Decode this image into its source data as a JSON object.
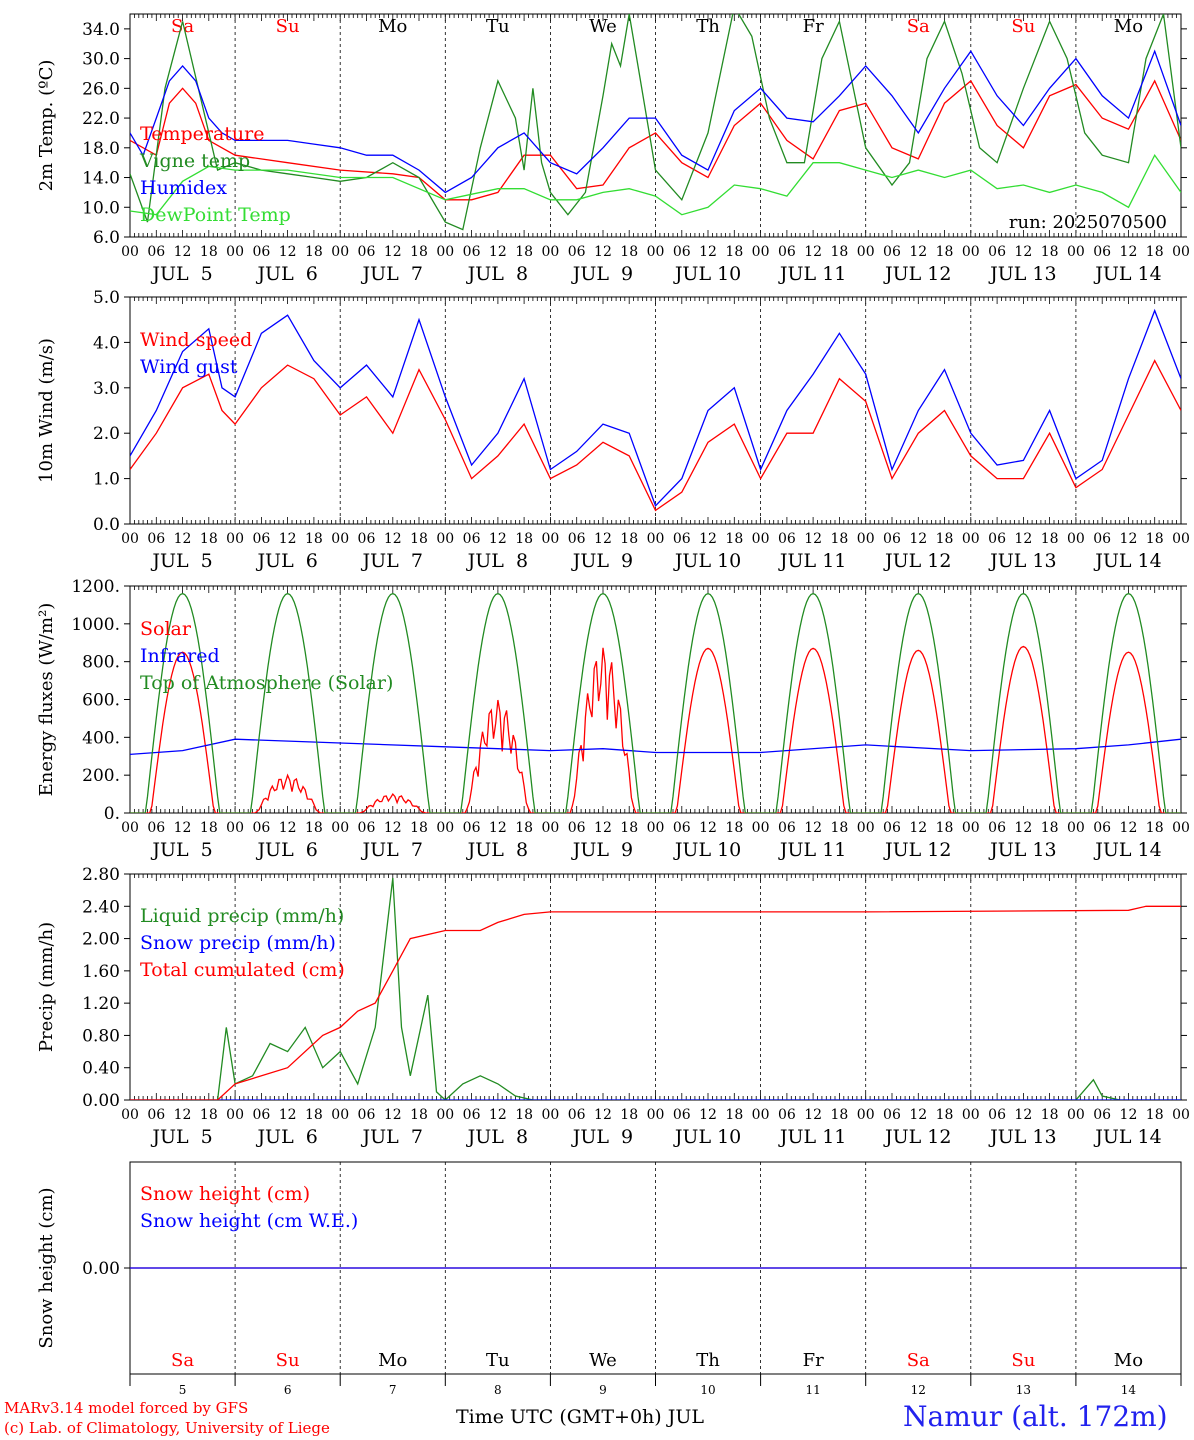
{
  "run_label": "run: 2025070500",
  "credits": [
    "MARv3.14 model forced by GFS",
    "(c) Lab. of Climatology, University of Liege"
  ],
  "xaxis_title": "Time UTC (GMT+0h) JUL",
  "station": "Namur (alt. 172m)",
  "colors": {
    "red": "#ff0000",
    "blue": "#0000ff",
    "green": "#228b22",
    "lightgreen": "#33dd33",
    "weekend": "#ff0000",
    "weekday": "#000000"
  },
  "days": [
    {
      "num": "5",
      "label": "JUL  5",
      "dow": "Sa",
      "weekend": true
    },
    {
      "num": "6",
      "label": "JUL  6",
      "dow": "Su",
      "weekend": true
    },
    {
      "num": "7",
      "label": "JUL  7",
      "dow": "Mo",
      "weekend": false
    },
    {
      "num": "8",
      "label": "JUL  8",
      "dow": "Tu",
      "weekend": false
    },
    {
      "num": "9",
      "label": "JUL  9",
      "dow": "We",
      "weekend": false
    },
    {
      "num": "10",
      "label": "JUL 10",
      "dow": "Th",
      "weekend": false
    },
    {
      "num": "11",
      "label": "JUL 11",
      "dow": "Fr",
      "weekend": false
    },
    {
      "num": "12",
      "label": "JUL 12",
      "dow": "Sa",
      "weekend": true
    },
    {
      "num": "13",
      "label": "JUL 13",
      "dow": "Su",
      "weekend": true
    },
    {
      "num": "14",
      "label": "JUL 14",
      "dow": "Mo",
      "weekend": false
    }
  ],
  "hour_ticks": [
    "00",
    "06",
    "12",
    "18"
  ],
  "chart_data": [
    {
      "type": "line",
      "ylabel": "2m Temp. (ºC)",
      "ylim": [
        6,
        36
      ],
      "yticks": [
        "6.0",
        "10.0",
        "14.0",
        "18.0",
        "22.0",
        "26.0",
        "30.0",
        "34.0"
      ],
      "x_unit": "hours since JUL 5 00 UTC",
      "series": [
        {
          "name": "Temperature",
          "color": "red",
          "x": [
            0,
            6,
            9,
            12,
            15,
            18,
            24,
            36,
            48,
            60,
            66,
            72,
            78,
            84,
            90,
            96,
            102,
            108,
            114,
            120,
            126,
            132,
            138,
            144,
            150,
            156,
            162,
            168,
            174,
            180,
            186,
            192,
            198,
            204,
            210,
            216,
            222,
            228,
            234,
            240
          ],
          "y": [
            19,
            17,
            24,
            26,
            24,
            19,
            17,
            16,
            15,
            14.5,
            14,
            11,
            11,
            12,
            17,
            17,
            12.5,
            13,
            18,
            20,
            16,
            14,
            21,
            24,
            19,
            16.5,
            23,
            24,
            18,
            16.5,
            24,
            27,
            21,
            18,
            25,
            26.5,
            22,
            20.5,
            27,
            19
          ]
        },
        {
          "name": "Vigne temp",
          "color": "green",
          "x": [
            0,
            4,
            8,
            12,
            16,
            20,
            24,
            30,
            36,
            42,
            48,
            54,
            60,
            66,
            72,
            76,
            80,
            84,
            88,
            90,
            92,
            94,
            96,
            100,
            104,
            108,
            110,
            112,
            114,
            116,
            120,
            126,
            132,
            138,
            142,
            146,
            150,
            154,
            158,
            162,
            168,
            174,
            178,
            182,
            186,
            190,
            194,
            198,
            204,
            210,
            214,
            218,
            222,
            228,
            232,
            236,
            240
          ],
          "y": [
            14.5,
            8,
            26,
            35,
            25,
            15,
            16,
            15,
            14.5,
            14,
            13.5,
            14,
            16,
            14,
            8,
            7,
            18,
            27,
            22,
            15,
            26,
            16,
            12,
            9,
            12,
            25,
            32,
            29,
            36,
            29,
            15,
            11,
            20,
            37,
            33,
            22,
            16,
            16,
            30,
            35,
            18,
            13,
            16,
            30,
            35,
            28,
            18,
            16,
            26,
            35,
            30,
            20,
            17,
            16,
            30,
            36,
            18
          ]
        },
        {
          "name": "Humidex",
          "color": "blue",
          "x": [
            0,
            3,
            6,
            9,
            12,
            15,
            18,
            21,
            24,
            30,
            36,
            42,
            48,
            54,
            60,
            66,
            72,
            78,
            84,
            90,
            96,
            102,
            108,
            114,
            120,
            126,
            132,
            138,
            144,
            150,
            156,
            162,
            168,
            174,
            180,
            186,
            192,
            198,
            204,
            210,
            216,
            222,
            228,
            234,
            240
          ],
          "y": [
            20,
            17,
            22,
            27,
            29,
            27,
            22,
            20,
            19,
            19,
            19,
            18.5,
            18,
            17,
            17,
            15,
            12,
            14,
            18,
            20,
            16,
            14.5,
            18,
            22,
            22,
            17,
            15,
            23,
            26,
            22,
            21.5,
            25,
            29,
            25,
            20,
            26,
            31,
            25,
            21,
            26,
            30,
            25,
            22,
            31,
            21
          ]
        },
        {
          "name": "DewPoint Temp",
          "color": "lightgreen",
          "x": [
            0,
            6,
            12,
            18,
            24,
            36,
            48,
            60,
            72,
            84,
            90,
            96,
            102,
            108,
            114,
            120,
            126,
            132,
            138,
            144,
            150,
            156,
            162,
            168,
            174,
            180,
            186,
            192,
            198,
            204,
            210,
            216,
            222,
            228,
            234,
            240
          ],
          "y": [
            9.5,
            9,
            13.5,
            15.5,
            15,
            15,
            14,
            14,
            11,
            12.5,
            12.5,
            11,
            11,
            12,
            12.5,
            11.5,
            9,
            10,
            13,
            12.5,
            11.5,
            16,
            16,
            15,
            14,
            15,
            14,
            15,
            12.5,
            13,
            12,
            13,
            12,
            10,
            17,
            12
          ]
        }
      ]
    },
    {
      "type": "line",
      "ylabel": "10m Wind (m/s)",
      "ylim": [
        0,
        5
      ],
      "yticks": [
        "0.0",
        "1.0",
        "2.0",
        "3.0",
        "4.0",
        "5.0"
      ],
      "x_unit": "hours since JUL 5 00 UTC",
      "series": [
        {
          "name": "Wind speed",
          "color": "red",
          "x": [
            0,
            6,
            12,
            18,
            21,
            24,
            30,
            36,
            42,
            48,
            54,
            60,
            66,
            72,
            78,
            84,
            90,
            96,
            102,
            108,
            114,
            120,
            126,
            132,
            138,
            144,
            150,
            156,
            162,
            168,
            174,
            180,
            186,
            192,
            198,
            204,
            210,
            216,
            222,
            228,
            234,
            240
          ],
          "y": [
            1.2,
            2.0,
            3.0,
            3.3,
            2.5,
            2.2,
            3.0,
            3.5,
            3.2,
            2.4,
            2.8,
            2.0,
            3.4,
            2.3,
            1.0,
            1.5,
            2.2,
            1.0,
            1.3,
            1.8,
            1.5,
            0.3,
            0.7,
            1.8,
            2.2,
            1.0,
            2.0,
            2.0,
            3.2,
            2.7,
            1.0,
            2.0,
            2.5,
            1.5,
            1.0,
            1.0,
            2.0,
            0.8,
            1.2,
            2.4,
            3.6,
            2.5
          ]
        },
        {
          "name": "Wind gust",
          "color": "blue",
          "x": [
            0,
            6,
            12,
            18,
            21,
            24,
            30,
            36,
            42,
            48,
            54,
            60,
            66,
            72,
            78,
            84,
            90,
            96,
            102,
            108,
            114,
            120,
            126,
            132,
            138,
            144,
            150,
            156,
            162,
            168,
            174,
            180,
            186,
            192,
            198,
            204,
            210,
            216,
            222,
            228,
            234,
            240
          ],
          "y": [
            1.5,
            2.5,
            3.8,
            4.3,
            3.0,
            2.8,
            4.2,
            4.6,
            3.6,
            3.0,
            3.5,
            2.8,
            4.5,
            2.8,
            1.3,
            2.0,
            3.2,
            1.2,
            1.6,
            2.2,
            2.0,
            0.4,
            1.0,
            2.5,
            3.0,
            1.2,
            2.5,
            3.3,
            4.2,
            3.3,
            1.2,
            2.5,
            3.4,
            2.0,
            1.3,
            1.4,
            2.5,
            1.0,
            1.4,
            3.2,
            4.7,
            3.2
          ]
        }
      ]
    },
    {
      "type": "line",
      "ylabel": "Energy fluxes (W/m²)",
      "ylim": [
        0,
        1200
      ],
      "yticks": [
        "0.",
        "200.",
        "400.",
        "600.",
        "800.",
        "1000.",
        "1200."
      ],
      "x_unit": "hours since JUL 5 00 UTC",
      "series": [
        {
          "name": "Solar",
          "color": "red",
          "peaks": [
            850,
            200,
            100,
            600,
            880,
            870,
            870,
            860,
            880,
            850
          ]
        },
        {
          "name": "Infrared",
          "color": "blue",
          "x": [
            0,
            12,
            24,
            48,
            72,
            84,
            96,
            108,
            120,
            144,
            168,
            192,
            216,
            228,
            240
          ],
          "y": [
            310,
            330,
            390,
            370,
            350,
            340,
            330,
            340,
            320,
            320,
            360,
            330,
            340,
            360,
            390
          ]
        },
        {
          "name": "Top of Atmosphere (Solar)",
          "color": "green",
          "peaks": [
            1160,
            1160,
            1160,
            1160,
            1160,
            1160,
            1160,
            1160,
            1160,
            1160
          ]
        }
      ]
    },
    {
      "type": "line",
      "ylabel": "Precip (mm/h)",
      "ylim": [
        0,
        2.8
      ],
      "yticks": [
        "0.00",
        "0.40",
        "0.80",
        "1.20",
        "1.60",
        "2.00",
        "2.40",
        "2.80"
      ],
      "x_unit": "hours since JUL 5 00 UTC",
      "series": [
        {
          "name": "Liquid precip (mm/h)",
          "color": "green",
          "x": [
            0,
            20,
            22,
            24,
            28,
            32,
            36,
            40,
            44,
            48,
            52,
            56,
            60,
            62,
            64,
            68,
            70,
            72,
            76,
            80,
            84,
            88,
            92,
            96,
            100,
            216,
            220,
            222,
            226,
            240
          ],
          "y": [
            0,
            0,
            0.9,
            0.2,
            0.3,
            0.7,
            0.6,
            0.9,
            0.4,
            0.6,
            0.2,
            0.9,
            2.75,
            0.9,
            0.3,
            1.3,
            0.1,
            0,
            0.2,
            0.3,
            0.2,
            0.05,
            0,
            0,
            0,
            0,
            0.25,
            0.05,
            0,
            0
          ]
        },
        {
          "name": "Snow precip (mm/h)",
          "color": "blue",
          "x": [
            0,
            240
          ],
          "y": [
            0,
            0
          ]
        },
        {
          "name": "Total cumulated (cm)",
          "color": "red",
          "x": [
            0,
            20,
            24,
            36,
            44,
            48,
            52,
            56,
            60,
            64,
            72,
            80,
            84,
            90,
            96,
            168,
            228,
            232,
            240
          ],
          "y": [
            0,
            0,
            0.2,
            0.4,
            0.8,
            0.9,
            1.1,
            1.2,
            1.6,
            2.0,
            2.1,
            2.1,
            2.2,
            2.3,
            2.33,
            2.33,
            2.35,
            2.4,
            2.4
          ]
        }
      ]
    },
    {
      "type": "line",
      "ylabel": "Snow height (cm)",
      "yticks": [
        "0.00"
      ],
      "x_unit": "hours since JUL 5 00 UTC",
      "series": [
        {
          "name": "Snow height (cm)",
          "color": "red",
          "x": [
            0,
            240
          ],
          "y": [
            0,
            0
          ]
        },
        {
          "name": "Snow height (cm W.E.)",
          "color": "blue",
          "x": [
            0,
            240
          ],
          "y": [
            0,
            0
          ]
        }
      ]
    }
  ]
}
